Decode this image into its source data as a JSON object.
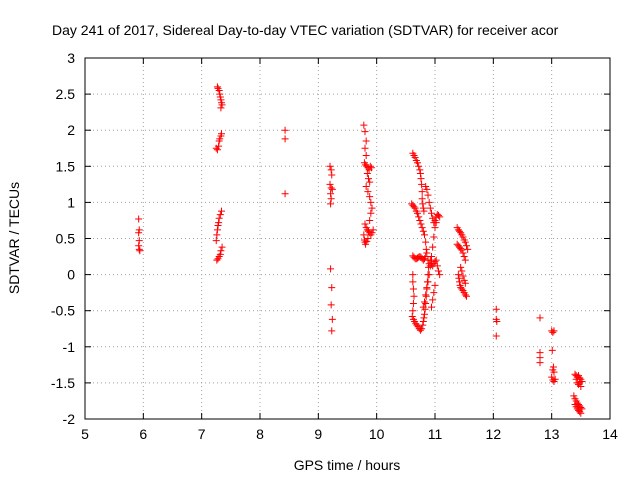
{
  "chart_data": {
    "type": "scatter",
    "title": "Day 241 of 2017, Sidereal Day-to-day VTEC variation (SDTVAR) for receiver acor",
    "xlabel": "GPS time / hours",
    "ylabel": "SDTVAR / TECUs",
    "xlim": [
      5,
      14
    ],
    "ylim": [
      -2,
      3
    ],
    "xticks": [
      "5",
      "6",
      "7",
      "8",
      "9",
      "10",
      "11",
      "12",
      "13",
      "14"
    ],
    "yticks": [
      "-2",
      "-1.5",
      "-1",
      "-0.5",
      "0",
      "0.5",
      "1",
      "1.5",
      "2",
      "2.5",
      "3"
    ],
    "grid": true,
    "marker": "+",
    "series": [
      {
        "name": "SDTVAR",
        "color": "#ff0000",
        "points": [
          [
            5.92,
            0.77
          ],
          [
            5.93,
            0.62
          ],
          [
            5.92,
            0.58
          ],
          [
            5.93,
            0.47
          ],
          [
            5.92,
            0.4
          ],
          [
            5.93,
            0.35
          ],
          [
            5.94,
            0.33
          ],
          [
            7.27,
            2.6
          ],
          [
            7.28,
            2.58
          ],
          [
            7.3,
            2.55
          ],
          [
            7.31,
            2.5
          ],
          [
            7.32,
            2.46
          ],
          [
            7.33,
            2.42
          ],
          [
            7.34,
            2.38
          ],
          [
            7.35,
            2.35
          ],
          [
            7.33,
            2.31
          ],
          [
            7.25,
            1.75
          ],
          [
            7.27,
            1.73
          ],
          [
            7.29,
            1.78
          ],
          [
            7.3,
            1.85
          ],
          [
            7.31,
            1.88
          ],
          [
            7.33,
            1.92
          ],
          [
            7.34,
            1.95
          ],
          [
            7.25,
            0.47
          ],
          [
            7.26,
            0.55
          ],
          [
            7.27,
            0.62
          ],
          [
            7.28,
            0.68
          ],
          [
            7.29,
            0.72
          ],
          [
            7.3,
            0.78
          ],
          [
            7.32,
            0.83
          ],
          [
            7.34,
            0.88
          ],
          [
            7.26,
            0.2
          ],
          [
            7.28,
            0.22
          ],
          [
            7.3,
            0.25
          ],
          [
            7.32,
            0.28
          ],
          [
            7.33,
            0.33
          ],
          [
            7.35,
            0.38
          ],
          [
            8.43,
            2.0
          ],
          [
            8.43,
            1.88
          ],
          [
            8.43,
            1.12
          ],
          [
            9.2,
            1.5
          ],
          [
            9.22,
            1.45
          ],
          [
            9.23,
            1.38
          ],
          [
            9.2,
            1.25
          ],
          [
            9.22,
            1.2
          ],
          [
            9.24,
            1.18
          ],
          [
            9.21,
            1.12
          ],
          [
            9.22,
            1.05
          ],
          [
            9.21,
            0.98
          ],
          [
            9.21,
            0.08
          ],
          [
            9.23,
            -0.18
          ],
          [
            9.22,
            -0.42
          ],
          [
            9.24,
            -0.62
          ],
          [
            9.23,
            -0.78
          ],
          [
            9.78,
            2.07
          ],
          [
            9.8,
            1.98
          ],
          [
            9.82,
            1.85
          ],
          [
            9.8,
            1.75
          ],
          [
            9.82,
            1.65
          ],
          [
            9.79,
            1.55
          ],
          [
            9.81,
            1.52
          ],
          [
            9.83,
            1.5
          ],
          [
            9.85,
            1.48
          ],
          [
            9.87,
            1.45
          ],
          [
            9.89,
            1.5
          ],
          [
            9.91,
            1.48
          ],
          [
            9.84,
            1.4
          ],
          [
            9.86,
            1.33
          ],
          [
            9.88,
            1.28
          ],
          [
            9.82,
            1.22
          ],
          [
            9.85,
            1.15
          ],
          [
            9.88,
            1.08
          ],
          [
            9.9,
            1.0
          ],
          [
            9.92,
            0.92
          ],
          [
            9.9,
            0.85
          ],
          [
            9.88,
            0.75
          ],
          [
            9.8,
            0.7
          ],
          [
            9.82,
            0.65
          ],
          [
            9.84,
            0.62
          ],
          [
            9.86,
            0.6
          ],
          [
            9.88,
            0.58
          ],
          [
            9.9,
            0.55
          ],
          [
            9.92,
            0.58
          ],
          [
            9.94,
            0.62
          ],
          [
            9.78,
            0.55
          ],
          [
            9.79,
            0.48
          ],
          [
            9.8,
            0.45
          ],
          [
            9.81,
            0.42
          ],
          [
            9.83,
            0.46
          ],
          [
            9.85,
            0.5
          ],
          [
            10.62,
            1.68
          ],
          [
            10.64,
            1.65
          ],
          [
            10.66,
            1.62
          ],
          [
            10.68,
            1.58
          ],
          [
            10.7,
            1.55
          ],
          [
            10.72,
            1.5
          ],
          [
            10.74,
            1.45
          ],
          [
            10.75,
            1.4
          ],
          [
            10.76,
            1.33
          ],
          [
            10.77,
            1.25
          ],
          [
            10.78,
            1.15
          ],
          [
            10.78,
            1.05
          ],
          [
            10.79,
            0.98
          ],
          [
            10.8,
            0.92
          ],
          [
            10.81,
            0.88
          ],
          [
            10.6,
            0.98
          ],
          [
            10.62,
            0.96
          ],
          [
            10.64,
            0.94
          ],
          [
            10.66,
            0.92
          ],
          [
            10.68,
            0.88
          ],
          [
            10.7,
            0.85
          ],
          [
            10.72,
            0.8
          ],
          [
            10.74,
            0.75
          ],
          [
            10.76,
            0.7
          ],
          [
            10.78,
            0.65
          ],
          [
            10.8,
            0.6
          ],
          [
            10.82,
            0.55
          ],
          [
            10.84,
            0.45
          ],
          [
            10.85,
            0.35
          ],
          [
            10.86,
            0.3
          ],
          [
            10.84,
            0.25
          ],
          [
            10.82,
            0.22
          ],
          [
            10.8,
            0.2
          ],
          [
            10.78,
            0.22
          ],
          [
            10.76,
            0.24
          ],
          [
            10.74,
            0.25
          ],
          [
            10.72,
            0.24
          ],
          [
            10.7,
            0.23
          ],
          [
            10.68,
            0.22
          ],
          [
            10.66,
            0.22
          ],
          [
            10.64,
            0.24
          ],
          [
            10.62,
            0.26
          ],
          [
            10.62,
            0.0
          ],
          [
            10.62,
            -0.1
          ],
          [
            10.63,
            -0.2
          ],
          [
            10.64,
            -0.3
          ],
          [
            10.63,
            -0.4
          ],
          [
            10.62,
            -0.5
          ],
          [
            10.61,
            -0.58
          ],
          [
            10.63,
            -0.62
          ],
          [
            10.65,
            -0.65
          ],
          [
            10.67,
            -0.68
          ],
          [
            10.69,
            -0.7
          ],
          [
            10.71,
            -0.72
          ],
          [
            10.73,
            -0.75
          ],
          [
            10.75,
            -0.77
          ],
          [
            10.77,
            -0.75
          ],
          [
            10.79,
            -0.7
          ],
          [
            10.8,
            -0.65
          ],
          [
            10.81,
            -0.6
          ],
          [
            10.82,
            -0.55
          ],
          [
            10.83,
            -0.48
          ],
          [
            10.84,
            -0.4
          ],
          [
            10.85,
            -0.3
          ],
          [
            10.86,
            -0.2
          ],
          [
            10.87,
            -0.1
          ],
          [
            10.88,
            0.0
          ],
          [
            10.89,
            0.1
          ],
          [
            10.9,
            0.15
          ],
          [
            10.88,
            0.2
          ],
          [
            10.8,
            -0.45
          ],
          [
            10.82,
            -0.38
          ],
          [
            10.84,
            -0.28
          ],
          [
            10.86,
            -0.18
          ],
          [
            10.88,
            -0.1
          ],
          [
            10.9,
            0.0
          ],
          [
            10.92,
            0.12
          ],
          [
            10.94,
            0.25
          ],
          [
            10.96,
            0.38
          ],
          [
            10.98,
            0.52
          ],
          [
            11.0,
            0.65
          ],
          [
            11.02,
            0.72
          ],
          [
            10.84,
            1.22
          ],
          [
            10.86,
            1.18
          ],
          [
            10.88,
            1.1
          ],
          [
            10.9,
            1.0
          ],
          [
            10.92,
            0.92
          ],
          [
            10.94,
            0.85
          ],
          [
            10.96,
            0.78
          ],
          [
            10.98,
            0.72
          ],
          [
            11.0,
            0.75
          ],
          [
            11.02,
            0.8
          ],
          [
            11.04,
            0.83
          ],
          [
            11.06,
            0.82
          ],
          [
            11.08,
            0.8
          ],
          [
            10.92,
            0.2
          ],
          [
            10.94,
            0.15
          ],
          [
            10.96,
            0.12
          ],
          [
            10.98,
            0.15
          ],
          [
            11.0,
            0.18
          ],
          [
            11.02,
            0.2
          ],
          [
            11.04,
            0.12
          ],
          [
            11.06,
            0.05
          ],
          [
            11.08,
            0.0
          ],
          [
            11.0,
            -0.15
          ],
          [
            10.98,
            -0.25
          ],
          [
            10.96,
            -0.35
          ],
          [
            10.94,
            -0.45
          ],
          [
            11.38,
            0.65
          ],
          [
            11.4,
            0.62
          ],
          [
            11.42,
            0.6
          ],
          [
            11.44,
            0.58
          ],
          [
            11.46,
            0.55
          ],
          [
            11.48,
            0.52
          ],
          [
            11.5,
            0.48
          ],
          [
            11.52,
            0.45
          ],
          [
            11.54,
            0.4
          ],
          [
            11.56,
            0.35
          ],
          [
            11.38,
            0.42
          ],
          [
            11.4,
            0.4
          ],
          [
            11.42,
            0.38
          ],
          [
            11.44,
            0.36
          ],
          [
            11.46,
            0.34
          ],
          [
            11.48,
            0.3
          ],
          [
            11.5,
            0.25
          ],
          [
            11.52,
            0.2
          ],
          [
            11.4,
            0.0
          ],
          [
            11.41,
            -0.05
          ],
          [
            11.42,
            -0.1
          ],
          [
            11.43,
            -0.15
          ],
          [
            11.44,
            -0.18
          ],
          [
            11.46,
            -0.2
          ],
          [
            11.48,
            -0.22
          ],
          [
            11.5,
            -0.25
          ],
          [
            11.52,
            -0.28
          ],
          [
            11.54,
            -0.3
          ],
          [
            11.44,
            0.1
          ],
          [
            11.46,
            0.05
          ],
          [
            11.48,
            -0.02
          ],
          [
            11.5,
            -0.08
          ],
          [
            11.52,
            -0.12
          ],
          [
            12.05,
            -0.48
          ],
          [
            12.05,
            -0.62
          ],
          [
            12.06,
            -0.65
          ],
          [
            12.05,
            -0.85
          ],
          [
            12.8,
            -0.6
          ],
          [
            12.8,
            -1.08
          ],
          [
            12.8,
            -1.15
          ],
          [
            12.8,
            -1.22
          ],
          [
            13.0,
            -0.78
          ],
          [
            13.02,
            -0.8
          ],
          [
            13.04,
            -0.78
          ],
          [
            13.01,
            -1.05
          ],
          [
            13.03,
            -1.28
          ],
          [
            13.02,
            -1.32
          ],
          [
            13.04,
            -1.35
          ],
          [
            13.0,
            -1.42
          ],
          [
            13.02,
            -1.46
          ],
          [
            13.04,
            -1.48
          ],
          [
            13.06,
            -1.45
          ],
          [
            13.4,
            -1.38
          ],
          [
            13.42,
            -1.4
          ],
          [
            13.44,
            -1.42
          ],
          [
            13.46,
            -1.4
          ],
          [
            13.48,
            -1.43
          ],
          [
            13.5,
            -1.45
          ],
          [
            13.52,
            -1.48
          ],
          [
            13.42,
            -1.45
          ],
          [
            13.44,
            -1.5
          ],
          [
            13.46,
            -1.52
          ],
          [
            13.48,
            -1.5
          ],
          [
            13.5,
            -1.55
          ],
          [
            13.38,
            -1.68
          ],
          [
            13.4,
            -1.72
          ],
          [
            13.42,
            -1.75
          ],
          [
            13.44,
            -1.78
          ],
          [
            13.46,
            -1.8
          ],
          [
            13.48,
            -1.82
          ],
          [
            13.5,
            -1.84
          ],
          [
            13.52,
            -1.86
          ],
          [
            13.4,
            -1.8
          ],
          [
            13.42,
            -1.83
          ],
          [
            13.44,
            -1.86
          ],
          [
            13.46,
            -1.88
          ],
          [
            13.48,
            -1.9
          ],
          [
            13.5,
            -1.92
          ]
        ]
      }
    ]
  }
}
